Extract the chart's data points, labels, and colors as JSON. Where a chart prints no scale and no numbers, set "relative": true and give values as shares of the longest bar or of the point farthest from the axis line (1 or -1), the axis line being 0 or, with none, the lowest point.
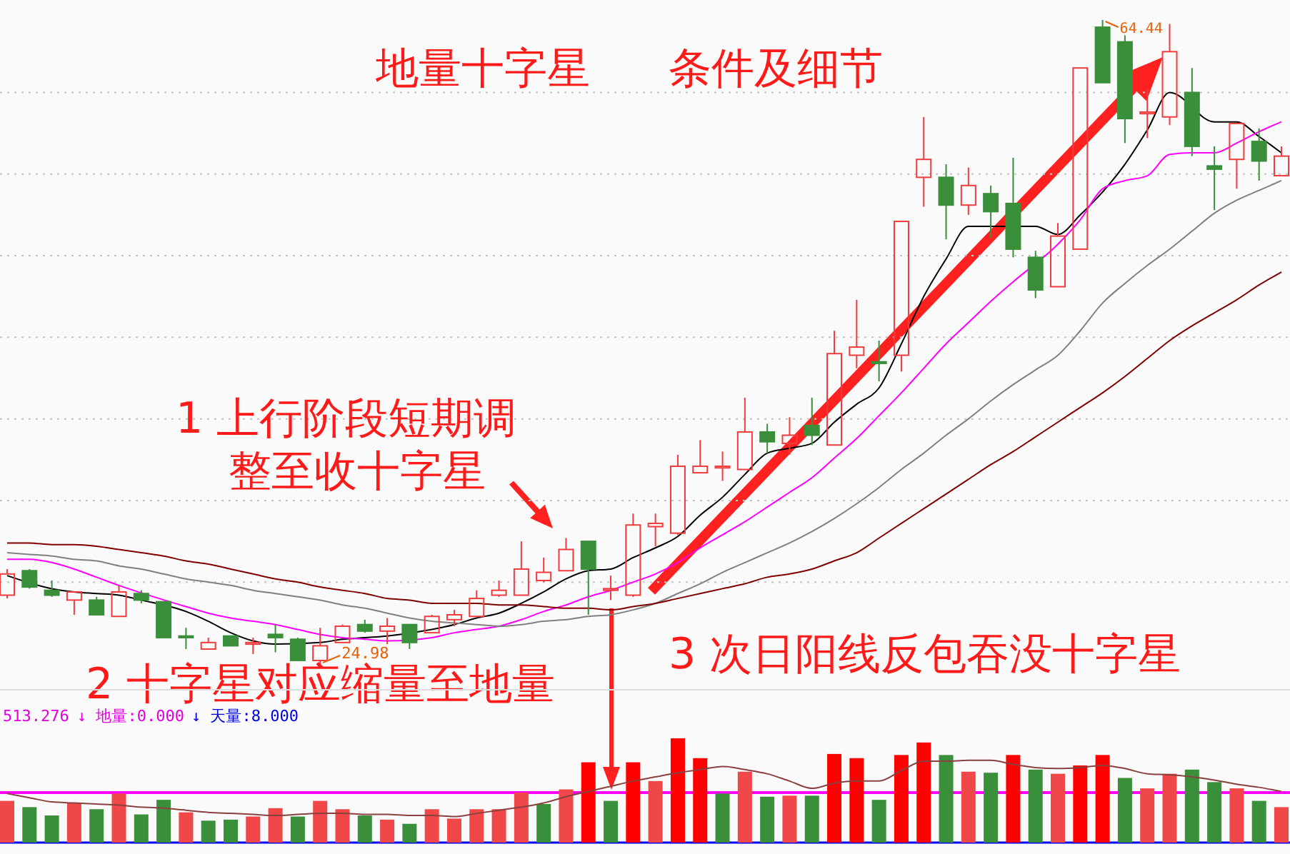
{
  "chart_data": [
    {
      "type": "candlestick",
      "title": "地量十字星",
      "subtitle": "条件及细节",
      "categories": [
        null,
        null,
        null,
        null,
        null,
        null,
        null,
        null,
        null,
        null,
        null,
        null,
        null,
        null,
        null,
        null,
        null,
        null,
        null,
        null,
        null,
        null,
        null,
        null,
        null,
        null,
        null,
        null,
        null,
        null,
        null,
        null,
        null,
        null,
        null,
        null,
        null,
        null,
        null,
        null,
        null,
        null,
        null,
        null,
        null,
        null,
        null,
        null,
        null,
        null,
        null,
        null,
        null,
        null,
        null,
        null,
        null,
        null
      ],
      "ohlc": [
        [
          29.2,
          30.8,
          29.0,
          30.5
        ],
        [
          30.7,
          30.8,
          29.6,
          29.7
        ],
        [
          29.5,
          30.1,
          29.1,
          29.2
        ],
        [
          28.9,
          29.4,
          28.0,
          29.4
        ],
        [
          28.9,
          29.1,
          28.0,
          28.0
        ],
        [
          27.9,
          29.8,
          27.9,
          29.4
        ],
        [
          29.3,
          29.5,
          28.7,
          28.9
        ],
        [
          28.8,
          28.8,
          26.6,
          26.6
        ],
        [
          26.7,
          27.2,
          25.9,
          26.6
        ],
        [
          25.9,
          26.6,
          25.9,
          26.3
        ],
        [
          26.7,
          26.7,
          26.1,
          26.1
        ],
        [
          26.2,
          26.6,
          25.6,
          26.3
        ],
        [
          26.8,
          27.4,
          25.7,
          26.6
        ],
        [
          26.5,
          26.6,
          25.2,
          25.2
        ],
        [
          25.2,
          27.2,
          24.98,
          26.1
        ],
        [
          26.3,
          27.4,
          26.3,
          27.3
        ],
        [
          27.4,
          27.7,
          26.9,
          27.0
        ],
        [
          27.0,
          27.8,
          26.2,
          27.3
        ],
        [
          27.4,
          27.4,
          25.9,
          26.3
        ],
        [
          26.9,
          28.0,
          26.9,
          27.9
        ],
        [
          27.7,
          28.3,
          27.3,
          28.0
        ],
        [
          27.9,
          29.5,
          27.9,
          29.0
        ],
        [
          29.2,
          30.1,
          29.1,
          29.5
        ],
        [
          29.2,
          32.5,
          29.2,
          30.8
        ],
        [
          30.1,
          31.5,
          30.0,
          30.6
        ],
        [
          30.7,
          32.7,
          30.7,
          32.0
        ],
        [
          32.5,
          32.5,
          28.0,
          30.8
        ],
        [
          29.5,
          30.4,
          28.9,
          29.6
        ],
        [
          29.2,
          34.2,
          29.1,
          33.5
        ],
        [
          33.4,
          34.2,
          32.2,
          33.6
        ],
        [
          33.0,
          37.8,
          32.9,
          37.1
        ],
        [
          36.7,
          38.7,
          36.7,
          37.1
        ],
        [
          37.0,
          38.0,
          36.2,
          37.1
        ],
        [
          36.9,
          41.3,
          36.9,
          39.2
        ],
        [
          39.2,
          39.7,
          37.9,
          38.6
        ],
        [
          38.5,
          40.1,
          37.8,
          39.0
        ],
        [
          39.6,
          41.3,
          38.4,
          39.0
        ],
        [
          38.4,
          45.4,
          38.4,
          44.0
        ],
        [
          43.9,
          47.3,
          43.1,
          44.4
        ],
        [
          43.5,
          44.8,
          42.3,
          43.4
        ],
        [
          43.9,
          52.1,
          42.9,
          52.1
        ],
        [
          54.8,
          58.5,
          53.0,
          55.9
        ],
        [
          54.8,
          55.6,
          51.0,
          53.1
        ],
        [
          53.1,
          55.4,
          52.5,
          54.3
        ],
        [
          53.8,
          54.3,
          51.1,
          52.7
        ],
        [
          53.2,
          56.0,
          49.9,
          50.4
        ],
        [
          49.9,
          50.3,
          47.4,
          47.9
        ],
        [
          48.1,
          52.0,
          48.1,
          51.2
        ],
        [
          50.4,
          61.5,
          50.4,
          61.5
        ],
        [
          64.0,
          64.44,
          60.6,
          60.6
        ],
        [
          63.1,
          63.5,
          56.9,
          58.4
        ],
        [
          58.7,
          60.2,
          57.2,
          58.8
        ],
        [
          58.5,
          64.2,
          58.0,
          62.5
        ],
        [
          60.0,
          61.5,
          56.1,
          56.7
        ],
        [
          55.5,
          56.7,
          52.8,
          55.3
        ],
        [
          55.9,
          58.1,
          54.1,
          58.1
        ],
        [
          57.0,
          57.8,
          54.6,
          55.8
        ],
        [
          54.9,
          56.7,
          54.9,
          56.1
        ]
      ],
      "colors": [
        "#f03c3c",
        "#3a8f3a",
        "#3a8f3a",
        "#f03c3c",
        "#3a8f3a",
        "#f03c3c",
        "#3a8f3a",
        "#3a8f3a",
        "#3a8f3a",
        "#f03c3c",
        "#3a8f3a",
        "#f03c3c",
        "#3a8f3a",
        "#3a8f3a",
        "#f03c3c",
        "#f03c3c",
        "#3a8f3a",
        "#f03c3c",
        "#3a8f3a",
        "#f03c3c",
        "#f03c3c",
        "#f03c3c",
        "#f03c3c",
        "#f03c3c",
        "#f03c3c",
        "#f03c3c",
        "#3a8f3a",
        "#f03c3c",
        "#f03c3c",
        "#f03c3c",
        "#f03c3c",
        "#f03c3c",
        "#f03c3c",
        "#f03c3c",
        "#3a8f3a",
        "#f03c3c",
        "#3a8f3a",
        "#f03c3c",
        "#f03c3c",
        "#3a8f3a",
        "#f03c3c",
        "#f03c3c",
        "#3a8f3a",
        "#f03c3c",
        "#3a8f3a",
        "#3a8f3a",
        "#3a8f3a",
        "#f03c3c",
        "#f03c3c",
        "#3a8f3a",
        "#3a8f3a",
        "#f03c3c",
        "#f03c3c",
        "#3a8f3a",
        "#3a8f3a",
        "#f03c3c",
        "#3a8f3a",
        "#f03c3c"
      ],
      "series": [
        {
          "type": "line",
          "color": "#000000",
          "values": [
            30.4,
            null,
            29.6,
            29.4,
            29.3,
            29.2,
            28.9,
            null,
            28.2,
            27.6,
            26.9,
            26.4,
            26.2,
            null,
            26.3,
            26.5,
            26.6,
            26.7,
            null,
            27.1,
            27.4,
            27.8,
            28.1,
            28.7,
            29.4,
            30.2,
            30.7,
            30.8,
            31.5,
            32.1,
            32.8,
            34.1,
            35.2,
            36.6,
            37.9,
            38.2,
            38.5,
            39.8,
            40.9,
            41.9,
            44.6,
            47.5,
            49.8,
            51.8,
            null,
            null,
            51.8,
            51.3,
            52.5,
            53.9,
            55.6,
            57.7,
            60.0,
            null,
            58.2,
            58.2,
            57.3,
            56.3
          ]
        },
        {
          "type": "line",
          "color": "#ff00ff",
          "values": [
            31.4,
            31.4,
            31.2,
            30.8,
            30.3,
            29.8,
            null,
            null,
            28.5,
            28.1,
            27.8,
            27.6,
            27.4,
            27.1,
            26.8,
            26.6,
            26.5,
            26.4,
            null,
            26.6,
            26.9,
            27.1,
            27.3,
            27.7,
            28.2,
            28.6,
            29.1,
            29.5,
            30.0,
            30.5,
            31.2,
            32.1,
            32.9,
            33.7,
            34.6,
            35.5,
            36.4,
            37.6,
            38.8,
            40.2,
            41.6,
            43.1,
            44.6,
            45.9,
            47.2,
            48.4,
            null,
            50.7,
            52.2,
            54.1,
            54.6,
            54.9,
            56.2,
            56.3,
            56.3,
            56.9,
            57.6,
            58.2
          ]
        },
        {
          "type": "line",
          "color": "#808080",
          "values": [
            31.8,
            31.7,
            31.6,
            31.4,
            31.3,
            31.0,
            30.8,
            30.5,
            30.2,
            30.0,
            29.8,
            29.5,
            29.3,
            29.1,
            28.9,
            28.6,
            28.4,
            28.1,
            27.8,
            27.6,
            27.5,
            27.4,
            27.3,
            27.4,
            27.6,
            27.7,
            27.9,
            28.0,
            28.3,
            28.7,
            29.3,
            29.9,
            30.6,
            31.2,
            31.8,
            32.4,
            33.1,
            33.9,
            34.8,
            35.8,
            36.9,
            37.9,
            39.0,
            40.0,
            41.1,
            42.1,
            43.0,
            43.9,
            45.4,
            47.1,
            48.3,
            49.4,
            50.4,
            51.5,
            52.6,
            53.4,
            54.0,
            54.6
          ]
        },
        {
          "type": "line",
          "color": "#800000",
          "values": [
            32.4,
            32.4,
            32.3,
            32.3,
            32.2,
            32.0,
            31.8,
            31.6,
            31.3,
            31.1,
            30.8,
            30.5,
            30.2,
            30.0,
            29.7,
            29.5,
            29.3,
            29.0,
            28.9,
            28.7,
            28.7,
            28.7,
            28.6,
            28.6,
            28.5,
            28.4,
            28.4,
            28.3,
            28.5,
            28.7,
            29.0,
            29.3,
            29.6,
            29.9,
            30.3,
            30.5,
            30.8,
            31.3,
            31.8,
            32.7,
            33.6,
            34.5,
            35.4,
            36.3,
            37.2,
            38.0,
            38.9,
            39.8,
            40.7,
            41.6,
            42.6,
            43.7,
            44.8,
            45.7,
            46.5,
            47.3,
            48.2,
            49.0
          ]
        }
      ],
      "yticks": [
        {
          "value": 30,
          "label": null
        },
        {
          "value": 35,
          "label": null
        },
        {
          "value": 40,
          "label": null
        },
        {
          "value": 45,
          "label": null
        },
        {
          "value": 50,
          "label": null
        },
        {
          "value": 55,
          "label": null
        },
        {
          "value": 60,
          "label": null
        }
      ],
      "grid": "y",
      "annotations": [
        "64.44",
        "24.98",
        "1 上行阶段短期调整至收十字星",
        "2 十字星对应缩量至地量",
        "3 次日阳线反包吞没十字星"
      ]
    },
    {
      "type": "bar",
      "relative": true,
      "categories": [
        null,
        null,
        null,
        null,
        null,
        null,
        null,
        null,
        null,
        null,
        null,
        null,
        null,
        null,
        null,
        null,
        null,
        null,
        null,
        null,
        null,
        null,
        null,
        null,
        null,
        null,
        null,
        null,
        null,
        null,
        null,
        null,
        null,
        null,
        null,
        null,
        null,
        null,
        null,
        null,
        null,
        null,
        null,
        null,
        null,
        null,
        null,
        null,
        null,
        null,
        null,
        null,
        null,
        null,
        null,
        null,
        null,
        null
      ],
      "series": [
        {
          "type": "bar",
          "values": [
            0.4,
            0.34,
            0.26,
            0.38,
            0.32,
            0.47,
            0.27,
            0.41,
            0.29,
            0.21,
            0.22,
            0.25,
            0.33,
            0.25,
            0.4,
            0.32,
            0.26,
            0.22,
            0.18,
            0.32,
            0.23,
            0.32,
            0.32,
            0.48,
            0.37,
            0.51,
            0.77,
            0.4,
            0.77,
            0.59,
            1,
            0.81,
            0.47,
            0.68,
            0.44,
            0.45,
            0.45,
            0.85,
            0.81,
            0.41,
            0.84,
            0.96,
            0.84,
            0.68,
            0.67,
            0.84,
            0.7,
            0.66,
            0.74,
            0.84,
            0.62,
            0.52,
            0.66,
            0.7,
            0.58,
            0.52,
            0.4,
            0.34
          ],
          "colors": [
            "#f04848",
            "#3a8f3a",
            "#3a8f3a",
            "#f04848",
            "#3a8f3a",
            "#f04848",
            "#3a8f3a",
            "#3a8f3a",
            "#f04848",
            "#3a8f3a",
            "#3a8f3a",
            "#f04848",
            "#f04848",
            "#3a8f3a",
            "#f04848",
            "#f04848",
            "#3a8f3a",
            "#f04848",
            "#3a8f3a",
            "#f04848",
            "#f04848",
            "#f04848",
            "#f04848",
            "#f04848",
            "#3a8f3a",
            "#f04848",
            "#ff0000",
            "#3a8f3a",
            "#ff0000",
            "#f04848",
            "#ff0000",
            "#ff0000",
            "#3a8f3a",
            "#f04848",
            "#3a8f3a",
            "#f04848",
            "#3a8f3a",
            "#ff0000",
            "#ff0000",
            "#3a8f3a",
            "#ff0000",
            "#ff0000",
            "#3a8f3a",
            "#f04848",
            "#3a8f3a",
            "#ff0000",
            "#3a8f3a",
            "#f04848",
            "#ff0000",
            "#ff0000",
            "#3a8f3a",
            "#f04848",
            "#f04848",
            "#3a8f3a",
            "#3a8f3a",
            "#f04848",
            "#3a8f3a",
            "#f04848"
          ]
        },
        {
          "type": "line",
          "color": "#8b4040",
          "values": [
            0.47,
            0.43,
            0.39,
            0.38,
            0.37,
            0.36,
            0.34,
            0.33,
            0.31,
            0.29,
            0.28,
            0.27,
            0.26,
            0.27,
            0.28,
            0.28,
            0.27,
            0.27,
            0.26,
            0.26,
            0.25,
            0.28,
            0.31,
            0.34,
            0.38,
            0.44,
            0.49,
            0.54,
            0.59,
            0.63,
            0.67,
            0.7,
            0.73,
            0.7,
            0.66,
            0.59,
            0.52,
            0.57,
            0.59,
            0.59,
            0.69,
            0.78,
            0.78,
            0.79,
            0.79,
            0.75,
            0.72,
            0.71,
            0.72,
            0.74,
            0.71,
            0.66,
            0.65,
            0.63,
            0.6,
            0.56,
            0.53,
            0.49
          ]
        }
      ],
      "ref_lines": [
        {
          "axis": "y",
          "value": 0.48,
          "color": "#ff00ff"
        }
      ],
      "annotations": [
        "513.276",
        "↓ 地量:0.000",
        "↓ 天量:8.000"
      ]
    }
  ]
}
